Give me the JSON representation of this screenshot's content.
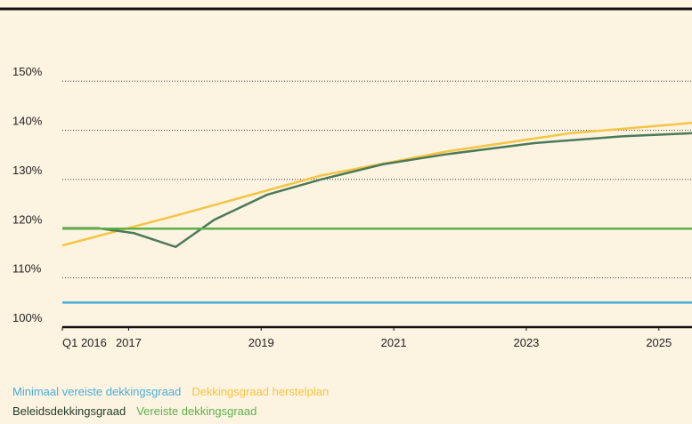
{
  "chart_data": {
    "type": "line",
    "xlim": [
      2016,
      2025.5
    ],
    "xticks": [
      {
        "value": 2016,
        "label": "Q1 2016"
      },
      2017,
      2019,
      2021,
      2023,
      2025
    ],
    "ylim": [
      100,
      153
    ],
    "yticks": [
      {
        "value": 100,
        "label": "100%"
      },
      {
        "value": 110,
        "label": "110%"
      },
      {
        "value": 120,
        "label": "120%"
      },
      {
        "value": 130,
        "label": "130%"
      },
      {
        "value": 140,
        "label": "140%"
      },
      {
        "value": 150,
        "label": "150%"
      }
    ],
    "grid": true,
    "series": [
      {
        "name": "Minimaal vereiste dekkingsgraad",
        "color": "#4aaed9",
        "x": [
          2016,
          2025.5
        ],
        "values": [
          105,
          105
        ]
      },
      {
        "name": "Dekkingsgraad herstelplan",
        "color": "#f5c542",
        "x": [
          2016,
          2017.75,
          2019.9,
          2021.8,
          2023.66,
          2025.5
        ],
        "values": [
          116.6,
          122.8,
          130.8,
          135.7,
          139.4,
          141.5
        ]
      },
      {
        "name": "Beleidsdekkingsgraad",
        "color": "#4a7a5a",
        "x": [
          2016,
          2016.54,
          2017.08,
          2017.71,
          2018.29,
          2019.09,
          2019.9,
          2020.84,
          2021.78,
          2023.12,
          2024.47,
          2025.5
        ],
        "values": [
          120.1,
          120.1,
          119.1,
          116.3,
          121.8,
          126.9,
          130,
          133.1,
          135.1,
          137.4,
          138.8,
          139.4
        ]
      },
      {
        "name": "Vereiste dekkingsgraad",
        "color": "#5cb04a",
        "x": [
          2016,
          2025.5
        ],
        "values": [
          120,
          120
        ]
      }
    ]
  }
}
